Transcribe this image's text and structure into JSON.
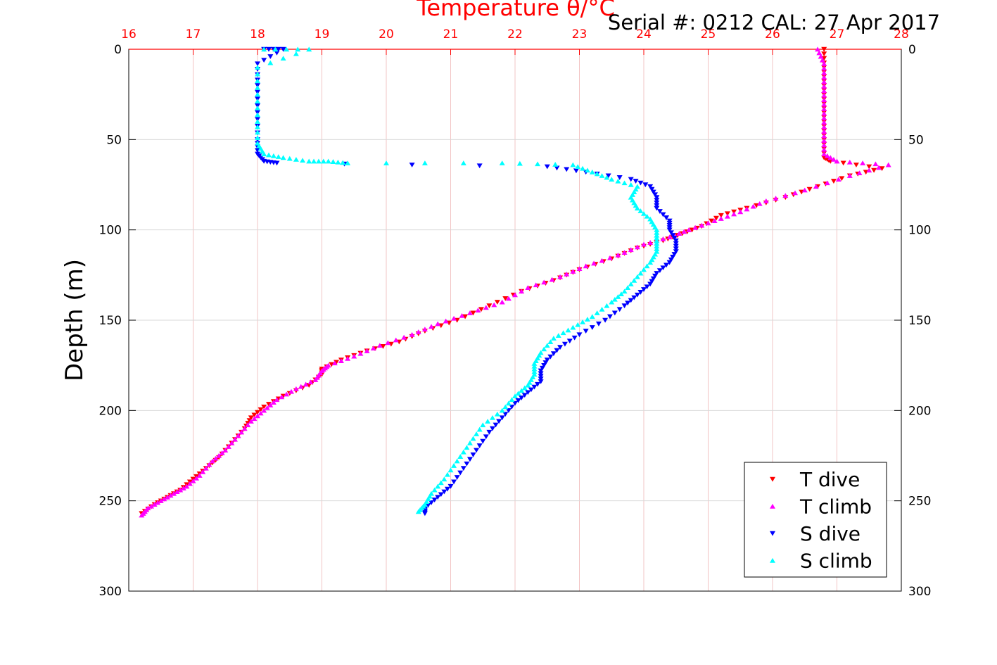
{
  "chart_data": {
    "type": "scatter",
    "title": "Temperature θ/°C",
    "title_color": "#ff0000",
    "header_text": "Serial #: 0212  CAL: 27 Apr 2017",
    "ylabel": "Depth (m)",
    "xlim": [
      16,
      28
    ],
    "ylim": [
      0,
      300
    ],
    "y_reversed": true,
    "x_ticks": [
      16,
      17,
      18,
      19,
      20,
      21,
      22,
      23,
      24,
      25,
      26,
      27,
      28
    ],
    "y_ticks": [
      0,
      50,
      100,
      150,
      200,
      250,
      300
    ],
    "y_ticks_left": [
      "0",
      "50",
      "100",
      "150",
      "200",
      "250",
      "300"
    ],
    "y_ticks_right": [
      "0",
      "50",
      "100",
      "150",
      "200",
      "250",
      "300"
    ],
    "grid": true,
    "x_axis_position": "top",
    "x_axis_color": "#ff0000",
    "grid_color": "#f2c4c4",
    "legend_position": "bottom-right",
    "series": [
      {
        "name": "T dive",
        "color": "#ff0000",
        "marker": "triangle-down",
        "points": [
          [
            26.8,
            0
          ],
          [
            26.8,
            10
          ],
          [
            26.8,
            20
          ],
          [
            26.8,
            30
          ],
          [
            26.8,
            40
          ],
          [
            26.8,
            50
          ],
          [
            26.8,
            60
          ],
          [
            26.9,
            62
          ],
          [
            27.7,
            66
          ],
          [
            27.2,
            70
          ],
          [
            26.7,
            76
          ],
          [
            26.2,
            82
          ],
          [
            25.6,
            88
          ],
          [
            25.2,
            92
          ],
          [
            24.9,
            98
          ],
          [
            24.6,
            102
          ],
          [
            24.3,
            106
          ],
          [
            23.9,
            110
          ],
          [
            23.5,
            116
          ],
          [
            23.0,
            122
          ],
          [
            22.6,
            128
          ],
          [
            22.1,
            134
          ],
          [
            21.6,
            142
          ],
          [
            21.1,
            150
          ],
          [
            20.6,
            156
          ],
          [
            20.2,
            162
          ],
          [
            19.7,
            167
          ],
          [
            19.3,
            172
          ],
          [
            19.0,
            177
          ],
          [
            19.0,
            180
          ],
          [
            18.8,
            186
          ],
          [
            18.4,
            192
          ],
          [
            18.1,
            198
          ],
          [
            17.9,
            204
          ],
          [
            17.8,
            210
          ],
          [
            17.6,
            218
          ],
          [
            17.4,
            226
          ],
          [
            17.2,
            232
          ],
          [
            17.0,
            238
          ],
          [
            16.8,
            244
          ],
          [
            16.6,
            248
          ],
          [
            16.4,
            252
          ],
          [
            16.2,
            257
          ]
        ]
      },
      {
        "name": "T climb",
        "color": "#ff00ff",
        "marker": "triangle-up",
        "points": [
          [
            26.7,
            0
          ],
          [
            26.8,
            8
          ],
          [
            26.8,
            18
          ],
          [
            26.8,
            28
          ],
          [
            26.8,
            38
          ],
          [
            26.8,
            48
          ],
          [
            26.8,
            58
          ],
          [
            27.0,
            62
          ],
          [
            27.8,
            64
          ],
          [
            27.2,
            70
          ],
          [
            26.5,
            78
          ],
          [
            25.9,
            84
          ],
          [
            25.5,
            90
          ],
          [
            25.1,
            95
          ],
          [
            24.7,
            100
          ],
          [
            24.4,
            104
          ],
          [
            24.0,
            108
          ],
          [
            23.6,
            114
          ],
          [
            23.1,
            120
          ],
          [
            22.7,
            126
          ],
          [
            22.2,
            132
          ],
          [
            21.8,
            140
          ],
          [
            21.3,
            146
          ],
          [
            20.8,
            152
          ],
          [
            20.4,
            158
          ],
          [
            19.9,
            164
          ],
          [
            19.5,
            170
          ],
          [
            19.1,
            175
          ],
          [
            19.0,
            178
          ],
          [
            18.9,
            183
          ],
          [
            18.6,
            188
          ],
          [
            18.3,
            194
          ],
          [
            18.1,
            200
          ],
          [
            17.9,
            206
          ],
          [
            17.7,
            214
          ],
          [
            17.5,
            222
          ],
          [
            17.3,
            228
          ],
          [
            17.1,
            236
          ],
          [
            16.9,
            242
          ],
          [
            16.7,
            246
          ],
          [
            16.5,
            250
          ],
          [
            16.3,
            254
          ],
          [
            16.2,
            258
          ]
        ]
      },
      {
        "name": "S dive",
        "color": "#0000ff",
        "marker": "triangle-down",
        "points": [
          [
            18.1,
            0
          ],
          [
            18.4,
            0
          ],
          [
            18.0,
            8
          ],
          [
            18.0,
            20
          ],
          [
            18.0,
            35
          ],
          [
            18.0,
            50
          ],
          [
            18.0,
            58
          ],
          [
            18.1,
            62
          ],
          [
            18.3,
            63
          ],
          [
            22.5,
            65
          ],
          [
            23.1,
            68
          ],
          [
            23.8,
            72
          ],
          [
            24.1,
            76
          ],
          [
            24.2,
            82
          ],
          [
            24.2,
            88
          ],
          [
            24.4,
            95
          ],
          [
            24.4,
            100
          ],
          [
            24.5,
            106
          ],
          [
            24.5,
            112
          ],
          [
            24.4,
            118
          ],
          [
            24.2,
            124
          ],
          [
            24.1,
            130
          ],
          [
            23.9,
            136
          ],
          [
            23.7,
            142
          ],
          [
            23.4,
            150
          ],
          [
            23.0,
            158
          ],
          [
            22.7,
            165
          ],
          [
            22.5,
            172
          ],
          [
            22.4,
            178
          ],
          [
            22.4,
            184
          ],
          [
            22.2,
            190
          ],
          [
            22.0,
            196
          ],
          [
            21.8,
            204
          ],
          [
            21.6,
            212
          ],
          [
            21.4,
            222
          ],
          [
            21.2,
            232
          ],
          [
            21.0,
            242
          ],
          [
            20.8,
            248
          ],
          [
            20.6,
            254
          ],
          [
            20.6,
            257
          ]
        ]
      },
      {
        "name": "S climb",
        "color": "#00ffff",
        "marker": "triangle-up",
        "points": [
          [
            18.1,
            0
          ],
          [
            18.8,
            0
          ],
          [
            18.0,
            10
          ],
          [
            18.0,
            25
          ],
          [
            18.0,
            40
          ],
          [
            18.0,
            52
          ],
          [
            18.1,
            58
          ],
          [
            18.4,
            60
          ],
          [
            18.8,
            62
          ],
          [
            19.1,
            62
          ],
          [
            19.4,
            63
          ],
          [
            21.8,
            63
          ],
          [
            22.9,
            64
          ],
          [
            23.2,
            68
          ],
          [
            23.5,
            72
          ],
          [
            23.9,
            76
          ],
          [
            23.8,
            82
          ],
          [
            23.9,
            88
          ],
          [
            24.1,
            94
          ],
          [
            24.2,
            100
          ],
          [
            24.2,
            106
          ],
          [
            24.2,
            112
          ],
          [
            24.1,
            118
          ],
          [
            23.9,
            126
          ],
          [
            23.7,
            134
          ],
          [
            23.5,
            140
          ],
          [
            23.2,
            148
          ],
          [
            22.9,
            154
          ],
          [
            22.6,
            160
          ],
          [
            22.4,
            168
          ],
          [
            22.3,
            174
          ],
          [
            22.3,
            180
          ],
          [
            22.2,
            186
          ],
          [
            22.0,
            192
          ],
          [
            21.8,
            200
          ],
          [
            21.5,
            208
          ],
          [
            21.3,
            218
          ],
          [
            21.1,
            228
          ],
          [
            20.9,
            238
          ],
          [
            20.7,
            246
          ],
          [
            20.6,
            252
          ],
          [
            20.5,
            256
          ]
        ]
      }
    ]
  }
}
